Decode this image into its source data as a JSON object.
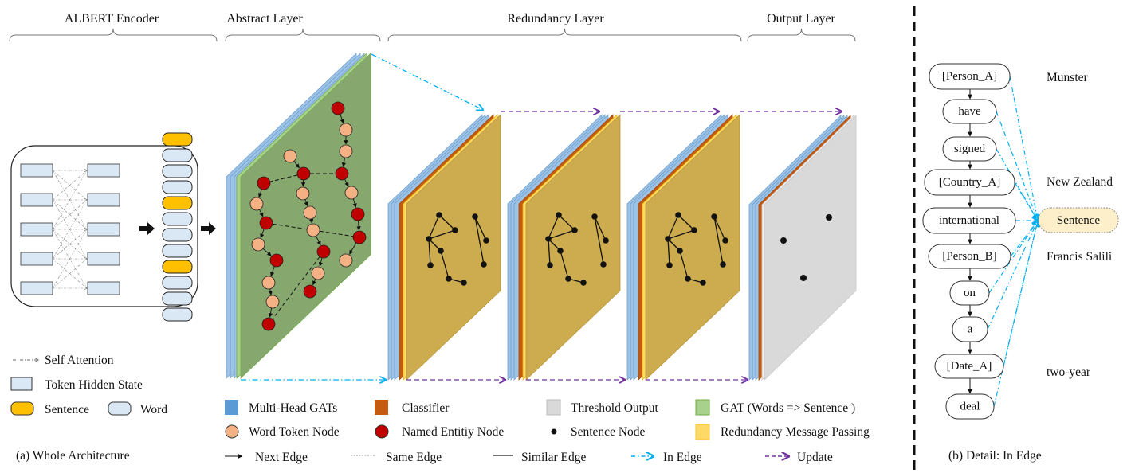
{
  "sections": {
    "albert": "ALBERT Encoder",
    "abstract": "Abstract Layer",
    "redundancy": "Redundancy Layer",
    "output": "Output Layer"
  },
  "left_legend": {
    "self_attention": "Self Attention",
    "token_hidden_state": "Token Hidden State",
    "sentence": "Sentence",
    "word": "Word"
  },
  "captions": {
    "a": "(a) Whole Architecture",
    "b": "(b) Detail: In Edge"
  },
  "legend": {
    "multi_head": "Multi-Head GATs",
    "classifier": "Classifier",
    "threshold": "Threshold Output",
    "gat": "GAT (Words => Sentence )",
    "word_node": "Word Token Node",
    "entity_node": "Named Entitiy Node",
    "sentence_node": "Sentence Node",
    "redundancy_mp": "Redundancy Message Passing",
    "next_edge": "Next Edge",
    "same_edge": "Same Edge",
    "similar_edge": "Similar Edge",
    "in_edge": "In Edge",
    "update": "Update"
  },
  "detail": {
    "words": [
      "[Person_A]",
      "have",
      "signed",
      "[Country_A]",
      "international",
      "[Person_B]",
      "on",
      "a",
      "[Date_A]",
      "deal"
    ],
    "sentence": "Sentence",
    "entities": [
      "Munster",
      "New Zealand",
      "Francis Salili",
      "two-year"
    ]
  },
  "sentence_sequence": [
    "sentence",
    "word",
    "word",
    "word",
    "sentence",
    "word",
    "word",
    "word",
    "sentence",
    "word",
    "word",
    "word"
  ],
  "colors": {
    "multi_head": "#9dc3e6",
    "classifier": "#c55a11",
    "threshold": "#d9d9d9",
    "gat": "#a9d18e",
    "gat_face": "#86a86f",
    "redundancy_mp": "#ffd966",
    "redundancy_face": "#cdab4f",
    "word_node": "#f4b183",
    "entity_node": "#c00000",
    "sentence_pill": "#ffc000",
    "word_pill": "#dae8f5",
    "in_edge": "#00b0f0",
    "update": "#7030a0",
    "detail_sentence": "#fcefc9"
  }
}
